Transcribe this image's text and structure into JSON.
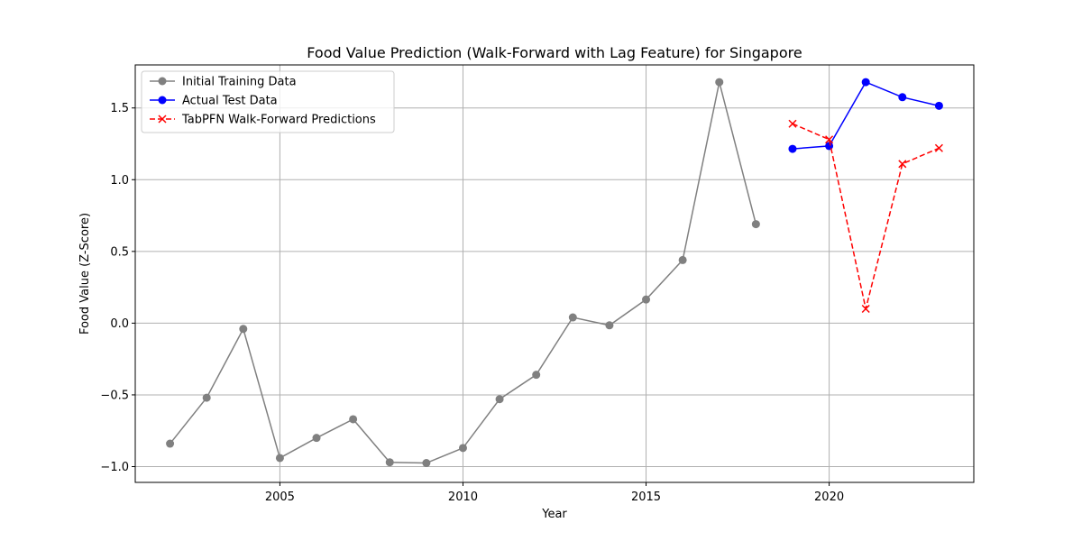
{
  "chart_data": {
    "type": "line",
    "title": "Food Value Prediction (Walk-Forward with Lag Feature) for Singapore",
    "xlabel": "Year",
    "ylabel": "Food Value (Z-Score)",
    "xlim": [
      2001.05,
      2023.95
    ],
    "ylim": [
      -1.11,
      1.8
    ],
    "xticks": [
      2005,
      2010,
      2015,
      2020
    ],
    "yticks": [
      -1.0,
      -0.5,
      0.0,
      0.5,
      1.0,
      1.5
    ],
    "ytick_labels": [
      "−1.0",
      "−0.5",
      "0.0",
      "0.5",
      "1.0",
      "1.5"
    ],
    "grid": true,
    "legend_position": "top-left",
    "series": [
      {
        "name": "Initial Training Data",
        "color": "#808080",
        "marker": "circle",
        "linestyle": "solid",
        "x": [
          2002,
          2003,
          2004,
          2005,
          2006,
          2007,
          2008,
          2009,
          2010,
          2011,
          2012,
          2013,
          2014,
          2015,
          2016,
          2017,
          2018
        ],
        "values": [
          -0.84,
          -0.52,
          -0.04,
          -0.94,
          -0.8,
          -0.67,
          -0.97,
          -0.975,
          -0.87,
          -0.53,
          -0.36,
          0.04,
          -0.015,
          0.165,
          0.44,
          1.68,
          0.69
        ]
      },
      {
        "name": "Actual Test Data",
        "color": "#0000ff",
        "marker": "circle",
        "linestyle": "solid",
        "x": [
          2019,
          2020,
          2021,
          2022,
          2023
        ],
        "values": [
          1.215,
          1.235,
          1.68,
          1.575,
          1.515
        ]
      },
      {
        "name": "TabPFN Walk-Forward Predictions",
        "color": "#ff0000",
        "marker": "x",
        "linestyle": "dashed",
        "x": [
          2019,
          2020,
          2021,
          2022,
          2023
        ],
        "values": [
          1.39,
          1.28,
          0.1,
          1.11,
          1.22
        ]
      }
    ]
  }
}
